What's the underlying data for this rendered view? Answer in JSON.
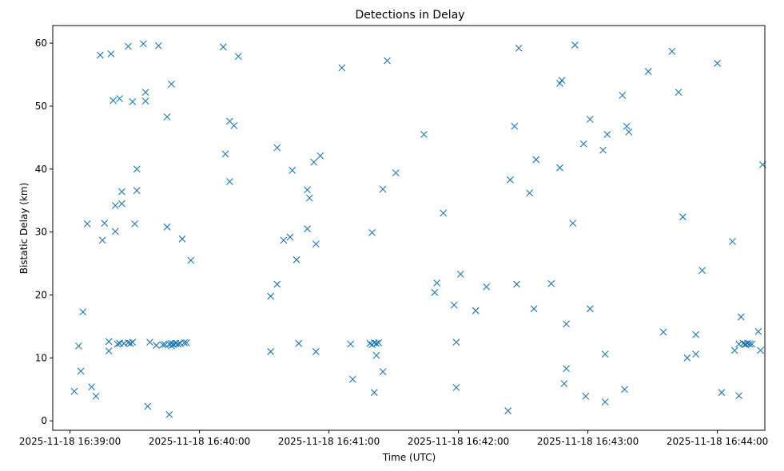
{
  "chart_data": {
    "type": "scatter",
    "title": "Detections in Delay",
    "xlabel": "Time (UTC)",
    "ylabel": "Bistatic Delay (km)",
    "x_tick_labels": [
      "2025-11-18 16:39:00",
      "2025-11-18 16:40:00",
      "2025-11-18 16:41:00",
      "2025-11-18 16:42:00",
      "2025-11-18 16:43:00",
      "2025-11-18 16:44:00"
    ],
    "y_ticks": [
      0,
      10,
      20,
      30,
      40,
      50,
      60
    ],
    "xlim": [
      "2025-11-18 16:38:52",
      "2025-11-18 16:44:22"
    ],
    "ylim": [
      -1.5,
      62.8
    ],
    "grid": false,
    "marker": "x",
    "color": "#1f77b4",
    "points": [
      [
        "16:39:02",
        4.7
      ],
      [
        "16:39:04",
        11.9
      ],
      [
        "16:39:05",
        7.9
      ],
      [
        "16:39:06",
        17.3
      ],
      [
        "16:39:08",
        31.3
      ],
      [
        "16:39:10",
        5.4
      ],
      [
        "16:39:12",
        3.9
      ],
      [
        "16:39:14",
        58.1
      ],
      [
        "16:39:15",
        28.7
      ],
      [
        "16:39:16",
        31.4
      ],
      [
        "16:39:18",
        11.1
      ],
      [
        "16:39:18",
        12.6
      ],
      [
        "16:39:19",
        58.3
      ],
      [
        "16:39:20",
        50.9
      ],
      [
        "16:39:21",
        34.2
      ],
      [
        "16:39:21",
        30.1
      ],
      [
        "16:39:22",
        12.2
      ],
      [
        "16:39:23",
        51.2
      ],
      [
        "16:39:23",
        12.3
      ],
      [
        "16:39:24",
        34.5
      ],
      [
        "16:39:24",
        36.4
      ],
      [
        "16:39:25",
        12.3
      ],
      [
        "16:39:27",
        12.4
      ],
      [
        "16:39:27",
        59.5
      ],
      [
        "16:39:28",
        12.3
      ],
      [
        "16:39:29",
        50.7
      ],
      [
        "16:39:29",
        12.5
      ],
      [
        "16:39:30",
        31.3
      ],
      [
        "16:39:31",
        40.0
      ],
      [
        "16:39:31",
        36.6
      ],
      [
        "16:39:34",
        59.9
      ],
      [
        "16:39:35",
        52.2
      ],
      [
        "16:39:35",
        50.8
      ],
      [
        "16:39:36",
        2.3
      ],
      [
        "16:39:37",
        12.5
      ],
      [
        "16:39:40",
        12.0
      ],
      [
        "16:39:41",
        59.6
      ],
      [
        "16:39:43",
        12.1
      ],
      [
        "16:39:44",
        12.1
      ],
      [
        "16:39:45",
        48.3
      ],
      [
        "16:39:45",
        30.8
      ],
      [
        "16:39:46",
        12.2
      ],
      [
        "16:39:46",
        1.0
      ],
      [
        "16:39:47",
        11.9
      ],
      [
        "16:39:47",
        53.5
      ],
      [
        "16:39:47",
        12.3
      ],
      [
        "16:39:48",
        12.1
      ],
      [
        "16:39:49",
        12.3
      ],
      [
        "16:39:50",
        12.2
      ],
      [
        "16:39:51",
        12.3
      ],
      [
        "16:39:52",
        28.9
      ],
      [
        "16:39:53",
        12.4
      ],
      [
        "16:39:54",
        12.4
      ],
      [
        "16:39:56",
        25.5
      ],
      [
        "16:40:11",
        59.4
      ],
      [
        "16:40:12",
        42.4
      ],
      [
        "16:40:14",
        38.0
      ],
      [
        "16:40:14",
        47.6
      ],
      [
        "16:40:16",
        46.9
      ],
      [
        "16:40:18",
        57.9
      ],
      [
        "16:40:33",
        11.0
      ],
      [
        "16:40:33",
        19.8
      ],
      [
        "16:40:36",
        21.7
      ],
      [
        "16:40:36",
        43.4
      ],
      [
        "16:40:39",
        28.7
      ],
      [
        "16:40:42",
        29.2
      ],
      [
        "16:40:43",
        39.8
      ],
      [
        "16:40:45",
        25.6
      ],
      [
        "16:40:46",
        12.3
      ],
      [
        "16:40:50",
        36.7
      ],
      [
        "16:40:50",
        30.5
      ],
      [
        "16:40:51",
        35.4
      ],
      [
        "16:40:53",
        41.1
      ],
      [
        "16:40:54",
        28.1
      ],
      [
        "16:40:54",
        11.0
      ],
      [
        "16:40:56",
        42.1
      ],
      [
        "16:41:06",
        56.1
      ],
      [
        "16:41:10",
        12.2
      ],
      [
        "16:41:11",
        6.6
      ],
      [
        "16:41:19",
        12.3
      ],
      [
        "16:41:20",
        12.1
      ],
      [
        "16:41:20",
        29.9
      ],
      [
        "16:41:21",
        4.5
      ],
      [
        "16:41:21",
        12.4
      ],
      [
        "16:41:22",
        12.3
      ],
      [
        "16:41:22",
        10.4
      ],
      [
        "16:41:23",
        12.4
      ],
      [
        "16:41:25",
        7.8
      ],
      [
        "16:41:25",
        36.8
      ],
      [
        "16:41:27",
        57.2
      ],
      [
        "16:41:31",
        39.4
      ],
      [
        "16:41:44",
        45.5
      ],
      [
        "16:41:49",
        20.4
      ],
      [
        "16:41:50",
        21.9
      ],
      [
        "16:41:53",
        33.0
      ],
      [
        "16:41:58",
        18.4
      ],
      [
        "16:41:59",
        12.5
      ],
      [
        "16:41:59",
        5.3
      ],
      [
        "16:42:01",
        23.3
      ],
      [
        "16:42:08",
        17.5
      ],
      [
        "16:42:13",
        21.3
      ],
      [
        "16:42:23",
        1.6
      ],
      [
        "16:42:24",
        38.3
      ],
      [
        "16:42:26",
        46.8
      ],
      [
        "16:42:27",
        21.7
      ],
      [
        "16:42:28",
        59.2
      ],
      [
        "16:42:33",
        36.2
      ],
      [
        "16:42:35",
        17.8
      ],
      [
        "16:42:36",
        41.5
      ],
      [
        "16:42:43",
        21.8
      ],
      [
        "16:42:47",
        40.2
      ],
      [
        "16:42:47",
        53.6
      ],
      [
        "16:42:48",
        54.1
      ],
      [
        "16:42:49",
        5.9
      ],
      [
        "16:42:50",
        8.3
      ],
      [
        "16:42:50",
        15.4
      ],
      [
        "16:42:53",
        31.4
      ],
      [
        "16:42:54",
        59.7
      ],
      [
        "16:42:58",
        44.0
      ],
      [
        "16:42:59",
        3.9
      ],
      [
        "16:43:01",
        47.9
      ],
      [
        "16:43:01",
        17.8
      ],
      [
        "16:43:07",
        43.0
      ],
      [
        "16:43:08",
        10.6
      ],
      [
        "16:43:08",
        3.0
      ],
      [
        "16:43:09",
        45.5
      ],
      [
        "16:43:16",
        51.7
      ],
      [
        "16:43:17",
        5.0
      ],
      [
        "16:43:18",
        46.8
      ],
      [
        "16:43:19",
        45.9
      ],
      [
        "16:43:28",
        55.5
      ],
      [
        "16:43:35",
        14.1
      ],
      [
        "16:43:39",
        58.7
      ],
      [
        "16:43:42",
        52.2
      ],
      [
        "16:43:44",
        32.4
      ],
      [
        "16:43:46",
        10.0
      ],
      [
        "16:43:50",
        10.6
      ],
      [
        "16:43:50",
        13.7
      ],
      [
        "16:43:53",
        23.9
      ],
      [
        "16:44:00",
        56.8
      ],
      [
        "16:44:02",
        4.5
      ],
      [
        "16:44:07",
        28.5
      ],
      [
        "16:44:08",
        11.2
      ],
      [
        "16:44:10",
        4.0
      ],
      [
        "16:44:10",
        12.2
      ],
      [
        "16:44:11",
        16.5
      ],
      [
        "16:44:12",
        12.3
      ],
      [
        "16:44:13",
        12.2
      ],
      [
        "16:44:13",
        12.1
      ],
      [
        "16:44:14",
        12.3
      ],
      [
        "16:44:15",
        12.2
      ],
      [
        "16:44:16",
        12.2
      ],
      [
        "16:44:19",
        14.2
      ],
      [
        "16:44:20",
        11.2
      ],
      [
        "16:44:21",
        40.7
      ]
    ]
  }
}
